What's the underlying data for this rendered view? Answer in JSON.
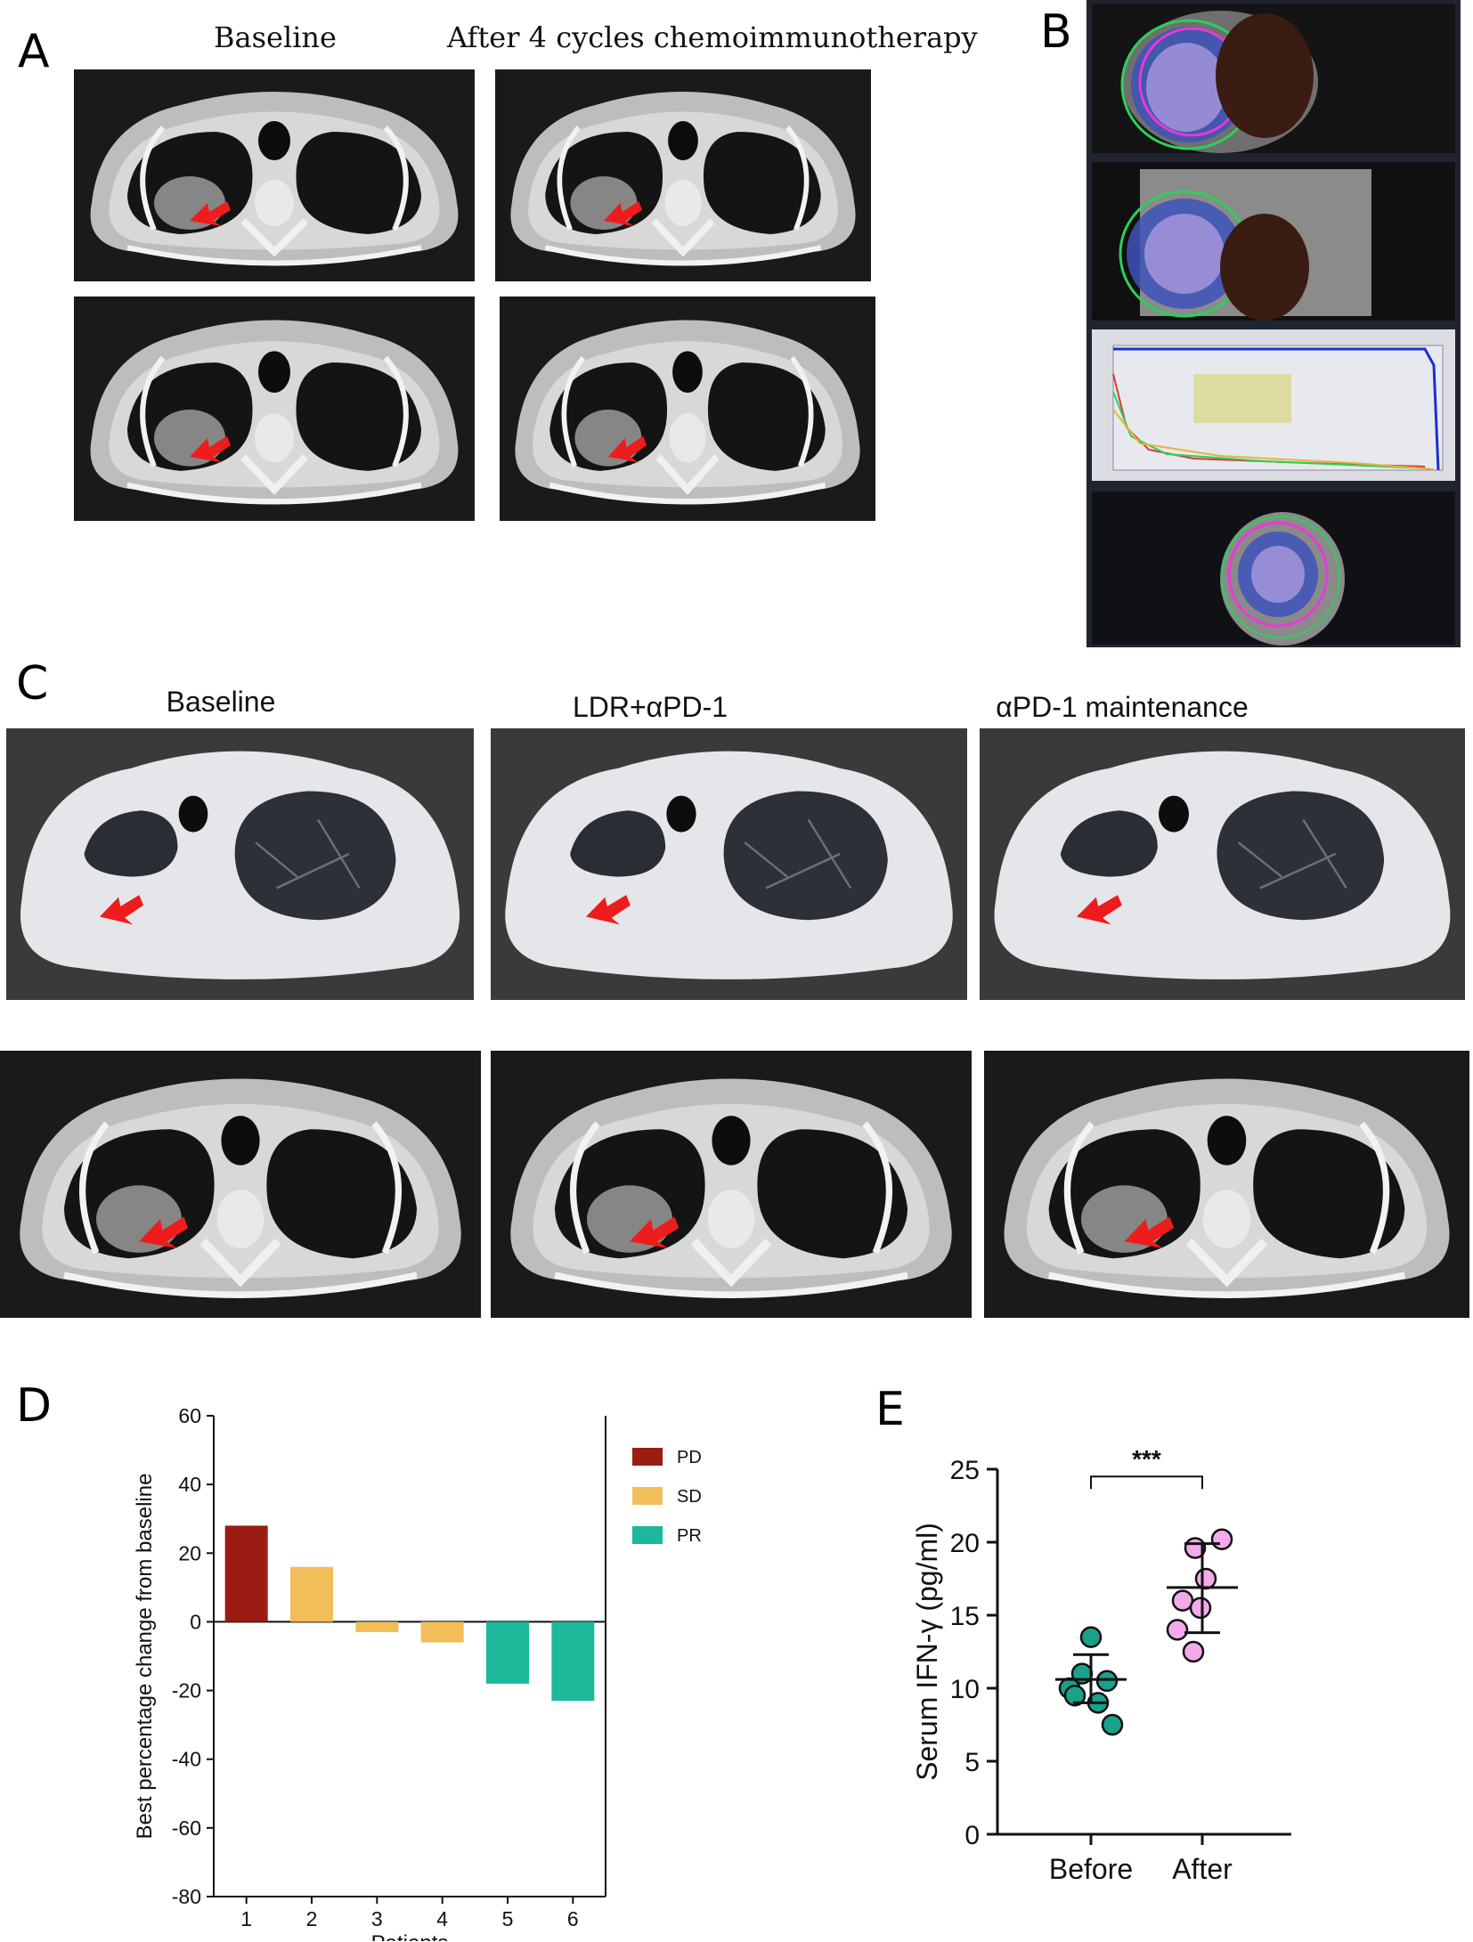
{
  "panels": {
    "A": {
      "label": "A",
      "col_titles": [
        "Baseline",
        "After 4 cycles chemoimmunotherapy"
      ]
    },
    "B": {
      "label": "B"
    },
    "C": {
      "label": "C",
      "col_titles": [
        "Baseline",
        "LDR+αPD-1",
        "αPD-1 maintenance"
      ]
    },
    "D": {
      "label": "D"
    },
    "E": {
      "label": "E"
    }
  },
  "colors": {
    "arrow": "#ee1c1c",
    "PD": "#9b1c12",
    "SD": "#f2be5a",
    "PR": "#1cb89a",
    "before_dot": "#1aa08b",
    "after_dot": "#f3a9ea"
  },
  "chart_data": [
    {
      "type": "bar",
      "panel": "D",
      "categories": [
        "1",
        "2",
        "3",
        "4",
        "5",
        "6"
      ],
      "values": [
        28,
        16,
        -3,
        -6,
        -18,
        -23
      ],
      "groups": [
        "PD",
        "SD",
        "SD",
        "SD",
        "PR",
        "PR"
      ],
      "legend": [
        "PD",
        "SD",
        "PR"
      ],
      "legend_position": "right",
      "title": "",
      "xlabel": "Patients",
      "ylabel": "Best percentage change from baseline",
      "ylim": [
        -80,
        60
      ],
      "yticks": [
        "60",
        "40",
        "20",
        "0",
        "-20",
        "-40",
        "-60",
        "-80"
      ]
    },
    {
      "type": "scatter",
      "panel": "E",
      "categories": [
        "Before",
        "After"
      ],
      "series": [
        {
          "category": "Before",
          "values": [
            13.5,
            11.0,
            10.5,
            10.0,
            9.5,
            9.0,
            7.5
          ],
          "mean": 10.6,
          "sd_low": 9.0,
          "sd_high": 12.3
        },
        {
          "category": "After",
          "values": [
            20.2,
            19.6,
            17.5,
            16.0,
            15.5,
            14.0,
            12.5
          ],
          "mean": 16.9,
          "sd_low": 13.8,
          "sd_high": 19.9
        }
      ],
      "significance": "***",
      "title": "",
      "xlabel": "",
      "ylabel": "Serum IFN-γ  (pg/ml)",
      "ylim": [
        0,
        25
      ],
      "yticks": [
        "25",
        "20",
        "15",
        "10",
        "5",
        "0"
      ]
    }
  ]
}
